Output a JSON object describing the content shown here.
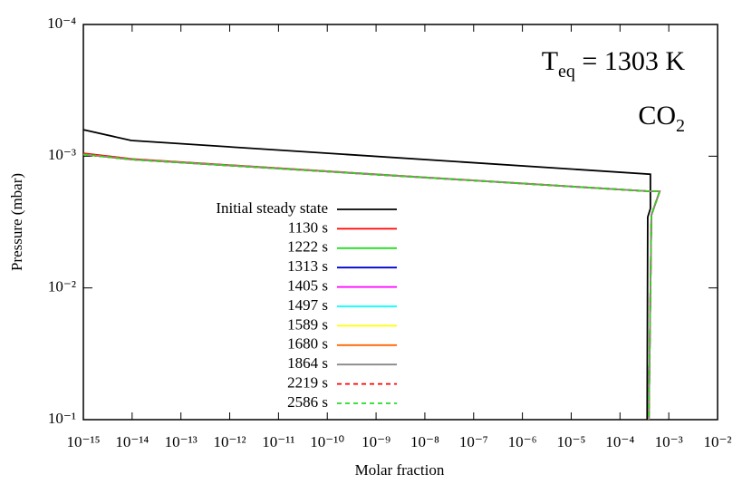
{
  "chart_data": {
    "type": "line",
    "xlabel": "Molar fraction",
    "ylabel": "Pressure (mbar)",
    "xlog": true,
    "ylog": true,
    "y_inverted": true,
    "xlim": [
      1e-15,
      0.01
    ],
    "ylim": [
      0.0001,
      0.1
    ],
    "xticks": [
      {
        "value": 1e-15,
        "label": "10⁻¹⁵"
      },
      {
        "value": 1e-14,
        "label": "10⁻¹⁴"
      },
      {
        "value": 1e-13,
        "label": "10⁻¹³"
      },
      {
        "value": 1e-12,
        "label": "10⁻¹²"
      },
      {
        "value": 1e-11,
        "label": "10⁻¹¹"
      },
      {
        "value": 1e-10,
        "label": "10⁻¹⁰"
      },
      {
        "value": 1e-09,
        "label": "10⁻⁹"
      },
      {
        "value": 1e-08,
        "label": "10⁻⁸"
      },
      {
        "value": 1e-07,
        "label": "10⁻⁷"
      },
      {
        "value": 1e-06,
        "label": "10⁻⁶"
      },
      {
        "value": 1e-05,
        "label": "10⁻⁵"
      },
      {
        "value": 0.0001,
        "label": "10⁻⁴"
      },
      {
        "value": 0.001,
        "label": "10⁻³"
      },
      {
        "value": 0.01,
        "label": "10⁻²"
      }
    ],
    "yticks": [
      {
        "value": 0.0001,
        "label": "10⁻⁴"
      },
      {
        "value": 0.001,
        "label": "10⁻³"
      },
      {
        "value": 0.01,
        "label": "10⁻²"
      },
      {
        "value": 0.1,
        "label": "10⁻¹"
      }
    ],
    "annotations": [
      {
        "parts": [
          {
            "text": "T"
          },
          {
            "text": "eq",
            "sub": true
          },
          {
            "text": " = 1303 K"
          }
        ]
      },
      {
        "parts": [
          {
            "text": "CO"
          },
          {
            "text": "2",
            "sub": true
          }
        ]
      }
    ],
    "series": [
      {
        "name": "Initial steady state",
        "color": "#000000",
        "dashed": false,
        "x": [
          1e-15,
          9.6e-15,
          0.00042,
          0.00042,
          0.00037,
          0.00036
        ],
        "values": [
          0.00063,
          0.00076,
          0.00137,
          0.0025,
          0.0029,
          0.1
        ]
      },
      {
        "name": "1130 s",
        "color": "#ff0000",
        "dashed": false,
        "x": [
          1e-15,
          1e-14,
          0.00042,
          0.00065,
          0.00044,
          0.00039
        ],
        "values": [
          0.00095,
          0.00105,
          0.00185,
          0.00185,
          0.0028,
          0.1
        ]
      },
      {
        "name": "1222 s",
        "color": "#22dd22",
        "dashed": false,
        "x": [
          1e-15,
          1e-14,
          0.00042,
          0.00065,
          0.00044,
          0.00039
        ],
        "values": [
          0.00097,
          0.00106,
          0.00185,
          0.00185,
          0.0028,
          0.1
        ]
      },
      {
        "name": "1313 s",
        "color": "#0000cc",
        "dashed": false,
        "x": [
          1e-15,
          1e-14,
          0.00042,
          0.00065,
          0.00044,
          0.00039
        ],
        "values": [
          0.00097,
          0.00106,
          0.00185,
          0.00185,
          0.0028,
          0.1
        ]
      },
      {
        "name": "1405 s",
        "color": "#ff00ff",
        "dashed": false,
        "x": [
          1e-15,
          1e-14,
          0.00042,
          0.00065,
          0.00044,
          0.00039
        ],
        "values": [
          0.00097,
          0.00106,
          0.00185,
          0.00185,
          0.0028,
          0.1
        ]
      },
      {
        "name": "1497 s",
        "color": "#00ffff",
        "dashed": false,
        "x": [
          1e-15,
          1e-14,
          0.00042,
          0.00065,
          0.00044,
          0.00039
        ],
        "values": [
          0.00097,
          0.00106,
          0.00185,
          0.00185,
          0.0028,
          0.1
        ]
      },
      {
        "name": "1589 s",
        "color": "#ffff00",
        "dashed": false,
        "x": [
          1e-15,
          1e-14,
          0.00042,
          0.00065,
          0.00044,
          0.00039
        ],
        "values": [
          0.00097,
          0.00106,
          0.00185,
          0.00185,
          0.0028,
          0.1
        ]
      },
      {
        "name": "1680 s",
        "color": "#ff6600",
        "dashed": false,
        "x": [
          1e-15,
          1e-14,
          0.00042,
          0.00065,
          0.00044,
          0.00039
        ],
        "values": [
          0.00097,
          0.00106,
          0.00185,
          0.00185,
          0.0028,
          0.1
        ]
      },
      {
        "name": "1864 s",
        "color": "#888888",
        "dashed": false,
        "x": [
          1e-15,
          1e-14,
          0.00042,
          0.00065,
          0.00044,
          0.00039
        ],
        "values": [
          0.00097,
          0.00106,
          0.00185,
          0.00185,
          0.0028,
          0.1
        ]
      },
      {
        "name": "2219 s",
        "color": "#ff0000",
        "dashed": true,
        "x": [
          1e-15,
          1e-14,
          0.00042,
          0.00065,
          0.00044,
          0.00039
        ],
        "values": [
          0.00097,
          0.00106,
          0.00185,
          0.00185,
          0.0028,
          0.1
        ]
      },
      {
        "name": "2586 s",
        "color": "#22dd22",
        "dashed": true,
        "x": [
          1e-15,
          1e-14,
          0.00042,
          0.00065,
          0.00044,
          0.00039
        ],
        "values": [
          0.00097,
          0.00106,
          0.00185,
          0.00185,
          0.0028,
          0.1
        ]
      }
    ]
  }
}
